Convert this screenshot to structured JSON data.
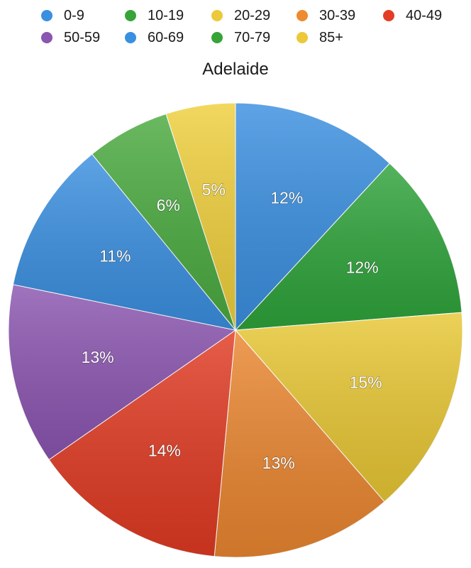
{
  "chart_data": {
    "type": "pie",
    "title": "Adelaide",
    "legend_position": "top",
    "categories": [
      "0-9",
      "10-19",
      "20-29",
      "30-39",
      "40-49",
      "50-59",
      "60-69",
      "70-79",
      "85+"
    ],
    "legend": [
      {
        "label": "0-9",
        "color": "#3a8fe0"
      },
      {
        "label": "10-19",
        "color": "#37a43a"
      },
      {
        "label": "20-29",
        "color": "#ecc93a"
      },
      {
        "label": "30-39",
        "color": "#ee8a2f"
      },
      {
        "label": "40-49",
        "color": "#e23d24"
      },
      {
        "label": "50-59",
        "color": "#8a56b0"
      },
      {
        "label": "60-69",
        "color": "#3a8fe0"
      },
      {
        "label": "70-79",
        "color": "#37a43a"
      },
      {
        "label": "85+",
        "color": "#ecc93a"
      }
    ],
    "slices": [
      {
        "name": "0-9",
        "value": 12,
        "label": "12%",
        "color": "#3a8fe0"
      },
      {
        "name": "10-19",
        "value": 12,
        "label": "12%",
        "color": "#2ea33a"
      },
      {
        "name": "20-29",
        "value": 15,
        "label": "15%",
        "color": "#e8c734"
      },
      {
        "name": "30-39",
        "value": 13,
        "label": "13%",
        "color": "#ea8630"
      },
      {
        "name": "40-49",
        "value": 14,
        "label": "14%",
        "color": "#e03a22"
      },
      {
        "name": "50-59",
        "value": 13,
        "label": "13%",
        "color": "#8b55b0"
      },
      {
        "name": "60-69",
        "value": 11,
        "label": "11%",
        "color": "#3a8fe0"
      },
      {
        "name": "70-79",
        "value": 6,
        "label": "6%",
        "color": "#4aaa3f"
      },
      {
        "name": "85+",
        "value": 5,
        "label": "5%",
        "color": "#efcf3c"
      }
    ]
  }
}
